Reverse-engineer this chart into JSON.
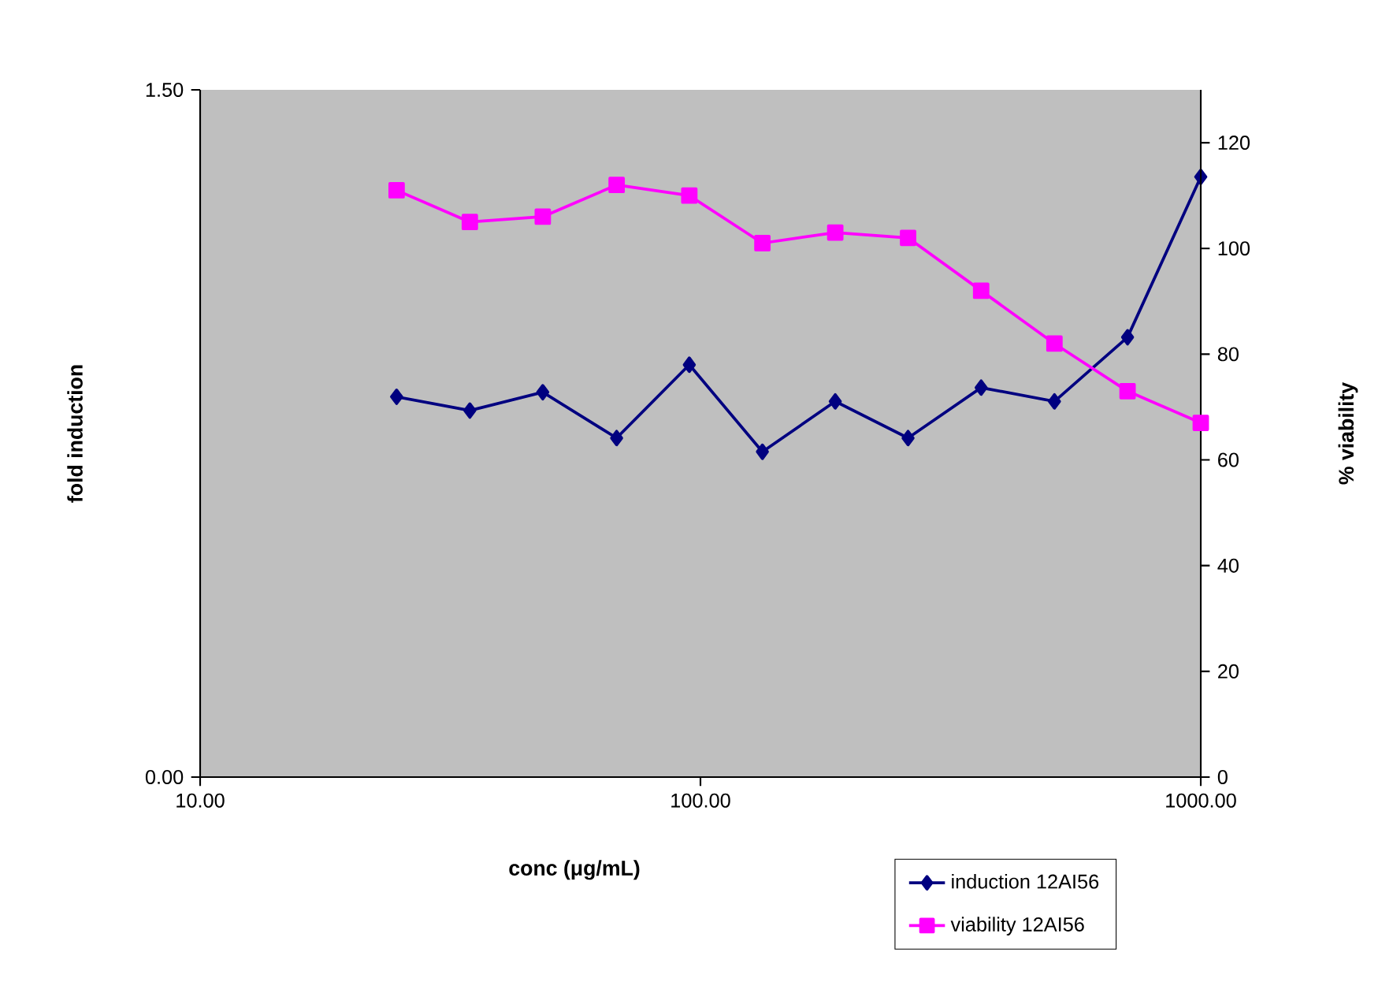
{
  "chart_data": {
    "type": "line",
    "xlabel": "conc (μg/mL)",
    "ylabel": "fold induction",
    "y2label": "% viability",
    "x": [
      24.7,
      34.6,
      48.4,
      68,
      95,
      133,
      186,
      260,
      364,
      510,
      714,
      1000
    ],
    "series": [
      {
        "name": "induction  12AI56",
        "color": "#000080",
        "marker": "diamond",
        "values": [
          0.83,
          0.8,
          0.84,
          0.74,
          0.9,
          0.71,
          0.82,
          0.74,
          0.85,
          0.82,
          0.96,
          1.31
        ]
      },
      {
        "name": "viability  12AI56",
        "color": "#ff00ff",
        "marker": "square",
        "axis": "y2",
        "values": [
          111,
          105,
          106,
          112,
          110,
          101,
          103,
          102,
          92,
          82,
          73,
          67
        ]
      }
    ],
    "log": "x",
    "xlim": [
      10,
      1000
    ],
    "xticks": [
      {
        "value": 10,
        "label": "10.00"
      },
      {
        "value": 100,
        "label": "100.00"
      },
      {
        "value": 1000,
        "label": "1000.00"
      }
    ],
    "ylim": [
      0,
      1.5
    ],
    "yticks": [
      {
        "value": 0,
        "label": "0.00"
      },
      {
        "value": 1.5,
        "label": "1.50"
      }
    ],
    "y2lim": [
      0,
      130
    ],
    "y2ticks": [
      0,
      20,
      40,
      60,
      80,
      100,
      120
    ],
    "line_style": "solid",
    "legend": "bottom right"
  }
}
